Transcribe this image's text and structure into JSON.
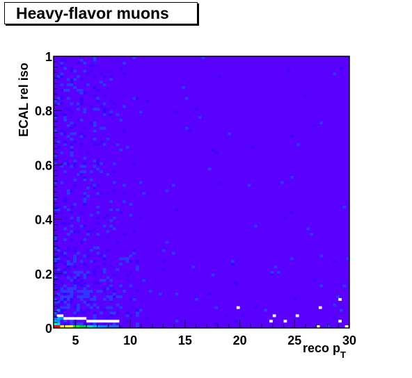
{
  "chart_data": {
    "type": "heatmap",
    "title": "Heavy-flavor muons",
    "xlabel": "reco p",
    "xlabel_subscript": "T",
    "ylabel": "ECAL rel iso",
    "xlim": [
      3,
      30
    ],
    "ylim": [
      0,
      1
    ],
    "x_ticks": [
      5,
      10,
      15,
      20,
      25,
      30
    ],
    "y_ticks": [
      0,
      0.2,
      0.4,
      0.6,
      0.8,
      1
    ],
    "colors": {
      "background_fill": "#5a00ff",
      "palette_low": "#3f00ff",
      "palette_mid": "#2b3bff",
      "empty_bin": "#ffffff"
    },
    "bins": {
      "x_bin_width": 0.3,
      "y_bin_width": 0.01
    },
    "hot_cells": [
      {
        "x": 3.0,
        "y": 0.0,
        "w": 0.6,
        "color": "#ff0000"
      },
      {
        "x": 3.6,
        "y": 0.0,
        "w": 0.6,
        "color": "#ffff00"
      },
      {
        "x": 4.2,
        "y": 0.0,
        "w": 0.6,
        "color": "#ffff00"
      },
      {
        "x": 4.8,
        "y": 0.0,
        "w": 0.6,
        "color": "#00ff00"
      },
      {
        "x": 5.4,
        "y": 0.0,
        "w": 0.6,
        "color": "#00cc33"
      },
      {
        "x": 6.0,
        "y": 0.0,
        "w": 0.6,
        "color": "#00ddaa"
      },
      {
        "x": 6.6,
        "y": 0.0,
        "w": 0.6,
        "color": "#00aaff"
      },
      {
        "x": 7.2,
        "y": 0.0,
        "w": 0.6,
        "color": "#0088ff"
      },
      {
        "x": 7.8,
        "y": 0.0,
        "w": 1.2,
        "color": "#1a66ff"
      },
      {
        "x": 3.0,
        "y": 0.01,
        "w": 0.3,
        "color": "#00ffcc"
      },
      {
        "x": 3.3,
        "y": 0.01,
        "w": 0.3,
        "color": "#00ddff"
      },
      {
        "x": 3.0,
        "y": 0.02,
        "w": 0.3,
        "color": "#00aaff"
      },
      {
        "x": 3.3,
        "y": 0.02,
        "w": 0.3,
        "color": "#0099ff"
      },
      {
        "x": 3.0,
        "y": 0.03,
        "w": 0.3,
        "color": "#0077ff"
      },
      {
        "x": 3.3,
        "y": 0.03,
        "w": 0.3,
        "color": "#00aaff"
      },
      {
        "x": 3.6,
        "y": 0.03,
        "w": 0.3,
        "color": "#0088ff"
      },
      {
        "x": 3.0,
        "y": 0.05,
        "w": 0.3,
        "color": "#0066ff"
      },
      {
        "x": 3.3,
        "y": 0.06,
        "w": 0.3,
        "color": "#0088ff"
      }
    ],
    "empty_cells": [
      {
        "x": 3.3,
        "y": 0.04,
        "w": 0.6
      },
      {
        "x": 3.9,
        "y": 0.03,
        "w": 2.1
      },
      {
        "x": 6.0,
        "y": 0.02,
        "w": 3.0
      },
      {
        "x": 19.7,
        "y": 0.07,
        "w": 0.3
      },
      {
        "x": 22.7,
        "y": 0.02,
        "w": 0.3
      },
      {
        "x": 23.0,
        "y": 0.04,
        "w": 0.3
      },
      {
        "x": 24.0,
        "y": 0.02,
        "w": 0.3
      },
      {
        "x": 25.1,
        "y": 0.04,
        "w": 0.3
      },
      {
        "x": 27.2,
        "y": 0.07,
        "w": 0.3
      },
      {
        "x": 27.0,
        "y": 0.0,
        "w": 0.3
      },
      {
        "x": 29.0,
        "y": 0.1,
        "w": 0.3
      },
      {
        "x": 29.0,
        "y": 0.02,
        "w": 0.3
      },
      {
        "x": 29.6,
        "y": 0.0,
        "w": 0.3
      }
    ]
  }
}
